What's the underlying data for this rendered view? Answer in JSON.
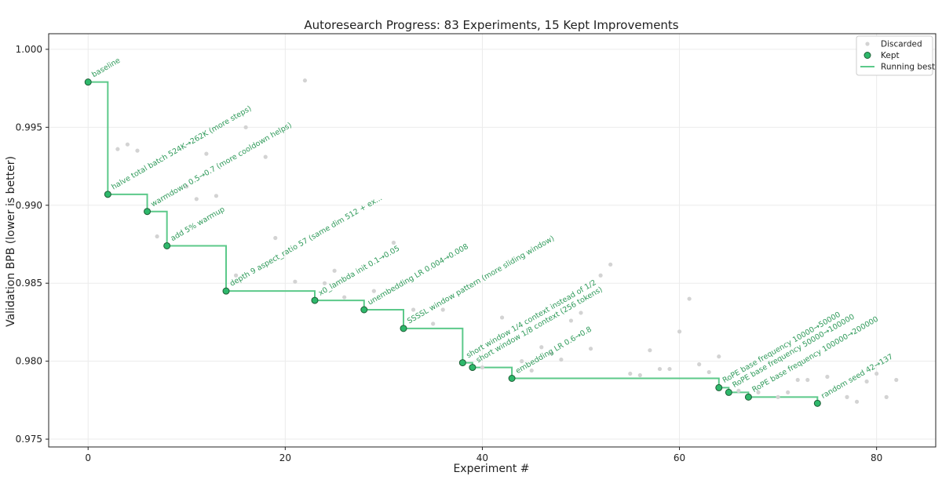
{
  "chart_data": {
    "type": "scatter",
    "title": "Autoresearch Progress: 83 Experiments, 15 Kept Improvements",
    "xlabel": "Experiment #",
    "ylabel": "Validation BPB (lower is better)",
    "xlim": [
      -4,
      86
    ],
    "ylim": [
      0.9745,
      1.001
    ],
    "xticks": [
      0,
      20,
      40,
      60,
      80
    ],
    "yticks": [
      0.975,
      0.98,
      0.985,
      0.99,
      0.995,
      1.0
    ],
    "xtick_labels": [
      "0",
      "20",
      "40",
      "60",
      "80"
    ],
    "ytick_labels": [
      "0.975",
      "0.980",
      "0.985",
      "0.990",
      "0.995",
      "1.000"
    ],
    "grid": true,
    "legend_position": "top-right",
    "colors": {
      "discarded": "#d3d3d3",
      "kept": "#2eb86b",
      "kept_edge": "#1e5e36",
      "running_best": "#5cc98a",
      "annotation": "#2f9a5a"
    },
    "series": [
      {
        "name": "Discarded",
        "points": [
          {
            "x": 3,
            "y": 0.9936
          },
          {
            "x": 4,
            "y": 0.9939
          },
          {
            "x": 5,
            "y": 0.9935
          },
          {
            "x": 7,
            "y": 0.988
          },
          {
            "x": 10,
            "y": 0.9912
          },
          {
            "x": 11,
            "y": 0.9904
          },
          {
            "x": 12,
            "y": 0.9933
          },
          {
            "x": 13,
            "y": 0.9906
          },
          {
            "x": 15,
            "y": 0.9855
          },
          {
            "x": 16,
            "y": 0.995
          },
          {
            "x": 18,
            "y": 0.9931
          },
          {
            "x": 19,
            "y": 0.9879
          },
          {
            "x": 21,
            "y": 0.9851
          },
          {
            "x": 22,
            "y": 0.998
          },
          {
            "x": 24,
            "y": 0.985
          },
          {
            "x": 25,
            "y": 0.9858
          },
          {
            "x": 26,
            "y": 0.9841
          },
          {
            "x": 29,
            "y": 0.9845
          },
          {
            "x": 31,
            "y": 0.9876
          },
          {
            "x": 33,
            "y": 0.9833
          },
          {
            "x": 35,
            "y": 0.9824
          },
          {
            "x": 36,
            "y": 0.9833
          },
          {
            "x": 40,
            "y": 0.9796
          },
          {
            "x": 42,
            "y": 0.9828
          },
          {
            "x": 44,
            "y": 0.98
          },
          {
            "x": 45,
            "y": 0.9794
          },
          {
            "x": 46,
            "y": 0.9809
          },
          {
            "x": 47,
            "y": 0.9805
          },
          {
            "x": 48,
            "y": 0.9801
          },
          {
            "x": 49,
            "y": 0.9826
          },
          {
            "x": 50,
            "y": 0.9831
          },
          {
            "x": 51,
            "y": 0.9808
          },
          {
            "x": 52,
            "y": 0.9855
          },
          {
            "x": 53,
            "y": 0.9862
          },
          {
            "x": 55,
            "y": 0.9792
          },
          {
            "x": 56,
            "y": 0.9791
          },
          {
            "x": 57,
            "y": 0.9807
          },
          {
            "x": 58,
            "y": 0.9795
          },
          {
            "x": 59,
            "y": 0.9795
          },
          {
            "x": 60,
            "y": 0.9819
          },
          {
            "x": 61,
            "y": 0.984
          },
          {
            "x": 62,
            "y": 0.9798
          },
          {
            "x": 63,
            "y": 0.9793
          },
          {
            "x": 64,
            "y": 0.9803
          },
          {
            "x": 66,
            "y": 0.9781
          },
          {
            "x": 68,
            "y": 0.978
          },
          {
            "x": 70,
            "y": 0.9777
          },
          {
            "x": 71,
            "y": 0.978
          },
          {
            "x": 72,
            "y": 0.9788
          },
          {
            "x": 73,
            "y": 0.9788
          },
          {
            "x": 75,
            "y": 0.979
          },
          {
            "x": 77,
            "y": 0.9777
          },
          {
            "x": 78,
            "y": 0.9774
          },
          {
            "x": 79,
            "y": 0.9787
          },
          {
            "x": 80,
            "y": 0.9792
          },
          {
            "x": 81,
            "y": 0.9777
          },
          {
            "x": 82,
            "y": 0.9788
          }
        ]
      },
      {
        "name": "Kept",
        "points": [
          {
            "x": 0,
            "y": 0.9979,
            "label": "baseline"
          },
          {
            "x": 2,
            "y": 0.9907,
            "label": "halve total batch 524K→262K (more steps)"
          },
          {
            "x": 6,
            "y": 0.9896,
            "label": "warmdown 0.5→0.7 (more cooldown helps)"
          },
          {
            "x": 8,
            "y": 0.9874,
            "label": "add 5% warmup"
          },
          {
            "x": 14,
            "y": 0.9845,
            "label": "depth 9 aspect_ratio 57 (same dim 512 + ex..."
          },
          {
            "x": 23,
            "y": 0.9839,
            "label": "x0_lambda init 0.1→0.05"
          },
          {
            "x": 28,
            "y": 0.9833,
            "label": "unembedding LR 0.004→0.008"
          },
          {
            "x": 32,
            "y": 0.9821,
            "label": "SSSSL window pattern (more sliding window)"
          },
          {
            "x": 38,
            "y": 0.9799,
            "label": "short window 1/4 context instead of 1/2"
          },
          {
            "x": 39,
            "y": 0.9796,
            "label": "short window 1/8 context (256 tokens)"
          },
          {
            "x": 43,
            "y": 0.9789,
            "label": "embedding LR 0.6→0.8"
          },
          {
            "x": 64,
            "y": 0.9783,
            "label": "RoPE base frequency 10000→50000"
          },
          {
            "x": 65,
            "y": 0.978,
            "label": "RoPE base frequency 50000→100000"
          },
          {
            "x": 67,
            "y": 0.9777,
            "label": "RoPE base frequency 100000→200000"
          },
          {
            "x": 74,
            "y": 0.9773,
            "label": "random seed 42→137"
          }
        ]
      },
      {
        "name": "Running best",
        "type": "step",
        "extends_to_x": 74
      }
    ],
    "legend": [
      "Discarded",
      "Kept",
      "Running best"
    ]
  }
}
